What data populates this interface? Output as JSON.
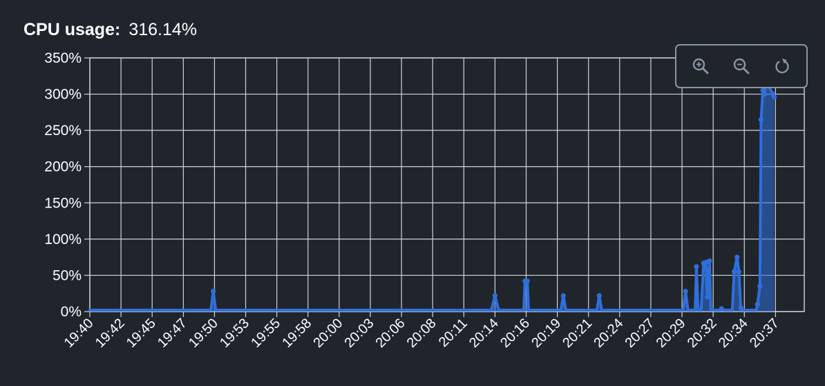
{
  "header": {
    "label": "CPU usage:",
    "value": "316.14%"
  },
  "toolbar": {
    "buttons": [
      {
        "icon": "zoom-in-icon"
      },
      {
        "icon": "zoom-out-icon"
      },
      {
        "icon": "reset-zoom-icon"
      }
    ]
  },
  "colors": {
    "background": "#20252c",
    "grid": "#d2d6dc",
    "series": "#2f6fdb",
    "text": "#ffffff"
  },
  "chart_data": {
    "type": "line",
    "title": "",
    "xlabel": "",
    "ylabel": "",
    "ylim": [
      0,
      350
    ],
    "y_ticks": [
      "0%",
      "50%",
      "100%",
      "150%",
      "200%",
      "250%",
      "300%",
      "350%"
    ],
    "x_tick_labels": [
      "19:40",
      "19:42",
      "19:45",
      "19:47",
      "19:50",
      "19:53",
      "19:55",
      "19:58",
      "20:00",
      "20:03",
      "20:06",
      "20:08",
      "20:11",
      "20:14",
      "20:16",
      "20:19",
      "20:21",
      "20:24",
      "20:27",
      "20:29",
      "20:32",
      "20:34",
      "20:37"
    ],
    "x_tick_minutes": [
      0,
      2.6,
      5.2,
      7.8,
      10.4,
      13.0,
      15.6,
      18.2,
      20.8,
      23.4,
      26.0,
      28.6,
      31.2,
      33.8,
      36.4,
      39.0,
      41.6,
      44.2,
      46.8,
      49.4,
      52.0,
      54.6,
      57.2
    ],
    "x_range_minutes": [
      0,
      59.6
    ],
    "grid": true,
    "legend": "none",
    "series": [
      {
        "x": [
          0,
          10.1,
          10.3,
          10.5,
          33.5,
          33.8,
          34.1,
          36.2,
          36.3,
          36.5,
          36.6,
          39.3,
          39.5,
          39.7,
          42.3,
          42.5,
          42.7,
          49.5,
          49.7,
          49.9,
          50.5,
          50.6,
          50.75,
          51.0,
          51.2,
          51.3,
          51.4,
          51.5,
          51.7,
          51.8,
          52.0,
          52.1,
          52.6,
          52.7,
          52.9,
          53.6,
          53.75,
          54.0,
          54.15,
          54.3,
          54.4,
          55.6,
          55.7,
          55.9,
          56.0,
          56.15,
          56.3,
          56.35,
          57.0,
          57.1
        ],
        "y": [
          2,
          2,
          28,
          2,
          2,
          22,
          2,
          2,
          42,
          42,
          2,
          2,
          22,
          2,
          2,
          22,
          2,
          2,
          28,
          2,
          2,
          62,
          2,
          2,
          67,
          60,
          68,
          20,
          70,
          2,
          3,
          2,
          2,
          4,
          2,
          2,
          55,
          75,
          55,
          5,
          2,
          2,
          10,
          35,
          265,
          305,
          300,
          318,
          300,
          296
        ]
      }
    ]
  }
}
